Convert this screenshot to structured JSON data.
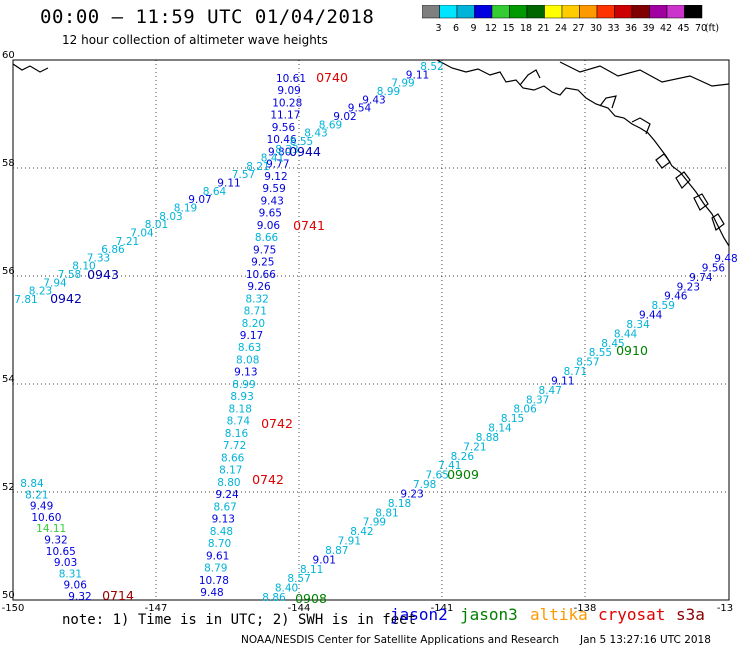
{
  "header": {
    "title": "00:00 – 11:59 UTC 01/04/2018",
    "subtitle": "12 hour collection of altimeter wave heights"
  },
  "colorbar": {
    "unit": "(ft)",
    "labels": [
      "3",
      "6",
      "9",
      "12",
      "15",
      "18",
      "21",
      "24",
      "27",
      "30",
      "33",
      "36",
      "39",
      "42",
      "45",
      "70"
    ],
    "colors": [
      "#7f7f7f",
      "#00e5ff",
      "#00b3d8",
      "#0000e0",
      "#33cc33",
      "#009900",
      "#006600",
      "#ffff00",
      "#ffcc00",
      "#ff9900",
      "#ff3300",
      "#cc0000",
      "#800000",
      "#a000a0",
      "#cc33cc",
      "#000000"
    ]
  },
  "axes": {
    "lon_labels": [
      "-150",
      "-147",
      "-144",
      "-141",
      "-138",
      "-13"
    ],
    "lat_labels": [
      "60",
      "58",
      "56",
      "54",
      "52",
      "50"
    ]
  },
  "tracks": {
    "t0740": [
      {
        "v": "10.61",
        "c": "#0000e0"
      },
      {
        "v": "9.09",
        "c": "#0000e0"
      },
      {
        "v": "10.28",
        "c": "#0000e0"
      },
      {
        "v": "11.17",
        "c": "#0000e0"
      },
      {
        "v": "9.56",
        "c": "#0000e0"
      },
      {
        "v": "10.46",
        "c": "#0000e0"
      },
      {
        "v": "9.80",
        "c": "#0000e0"
      },
      {
        "v": "9.77",
        "c": "#0000e0"
      },
      {
        "v": "9.12",
        "c": "#0000e0"
      },
      {
        "v": "9.59",
        "c": "#0000e0"
      },
      {
        "v": "9.43",
        "c": "#0000e0"
      },
      {
        "v": "9.65",
        "c": "#0000e0"
      },
      {
        "v": "9.06",
        "c": "#0000e0"
      },
      {
        "v": "8.66",
        "c": "#00b3d8"
      },
      {
        "v": "9.75",
        "c": "#0000e0"
      },
      {
        "v": "9.25",
        "c": "#0000e0"
      },
      {
        "v": "10.66",
        "c": "#0000e0"
      },
      {
        "v": "9.26",
        "c": "#0000e0"
      },
      {
        "v": "8.32",
        "c": "#00b3d8"
      },
      {
        "v": "8.71",
        "c": "#00b3d8"
      },
      {
        "v": "8.20",
        "c": "#00b3d8"
      },
      {
        "v": "9.17",
        "c": "#0000e0"
      },
      {
        "v": "8.63",
        "c": "#00b3d8"
      },
      {
        "v": "8.08",
        "c": "#00b3d8"
      },
      {
        "v": "9.13",
        "c": "#0000e0"
      },
      {
        "v": "8.99",
        "c": "#00b3d8"
      },
      {
        "v": "8.93",
        "c": "#00b3d8"
      },
      {
        "v": "8.18",
        "c": "#00b3d8"
      },
      {
        "v": "8.74",
        "c": "#00b3d8"
      },
      {
        "v": "8.16",
        "c": "#00b3d8"
      },
      {
        "v": "7.72",
        "c": "#00b3d8"
      },
      {
        "v": "8.66",
        "c": "#00b3d8"
      },
      {
        "v": "8.17",
        "c": "#00b3d8"
      },
      {
        "v": "8.80",
        "c": "#00b3d8"
      },
      {
        "v": "9.24",
        "c": "#0000e0"
      },
      {
        "v": "8.67",
        "c": "#00b3d8"
      },
      {
        "v": "9.13",
        "c": "#0000e0"
      },
      {
        "v": "8.48",
        "c": "#00b3d8"
      },
      {
        "v": "8.70",
        "c": "#00b3d8"
      },
      {
        "v": "9.61",
        "c": "#0000e0"
      },
      {
        "v": "8.79",
        "c": "#00b3d8"
      },
      {
        "v": "10.78",
        "c": "#0000e0"
      },
      {
        "v": "9.48",
        "c": "#0000e0"
      }
    ],
    "t0714": [
      {
        "v": "8.84",
        "c": "#00b3d8"
      },
      {
        "v": "8.21",
        "c": "#00b3d8"
      },
      {
        "v": "9.49",
        "c": "#0000e0"
      },
      {
        "v": "10.60",
        "c": "#0000e0"
      },
      {
        "v": "14.11",
        "c": "#33cc33"
      },
      {
        "v": "9.32",
        "c": "#0000e0"
      },
      {
        "v": "10.65",
        "c": "#0000e0"
      },
      {
        "v": "9.03",
        "c": "#0000e0"
      },
      {
        "v": "8.31",
        "c": "#00b3d8"
      },
      {
        "v": "9.06",
        "c": "#0000e0"
      },
      {
        "v": "9.32",
        "c": "#0000e0"
      }
    ],
    "t0943": [
      {
        "v": "7.81",
        "c": "#00b3d8"
      },
      {
        "v": "8.23",
        "c": "#00b3d8"
      },
      {
        "v": "7.94",
        "c": "#00b3d8"
      },
      {
        "v": "7.58",
        "c": "#00b3d8"
      },
      {
        "v": "8.10",
        "c": "#00b3d8"
      },
      {
        "v": "7.33",
        "c": "#00b3d8"
      },
      {
        "v": "6.86",
        "c": "#00b3d8"
      },
      {
        "v": "7.21",
        "c": "#00b3d8"
      },
      {
        "v": "7.04",
        "c": "#00b3d8"
      },
      {
        "v": "8.01",
        "c": "#00b3d8"
      },
      {
        "v": "8.03",
        "c": "#00b3d8"
      },
      {
        "v": "8.19",
        "c": "#00b3d8"
      },
      {
        "v": "9.07",
        "c": "#0000e0"
      },
      {
        "v": "8.64",
        "c": "#00b3d8"
      },
      {
        "v": "9.11",
        "c": "#0000e0"
      },
      {
        "v": "7.57",
        "c": "#00b3d8"
      },
      {
        "v": "8.21",
        "c": "#00b3d8"
      },
      {
        "v": "8.41",
        "c": "#00b3d8"
      },
      {
        "v": "8.33",
        "c": "#00b3d8"
      },
      {
        "v": "8.55",
        "c": "#00b3d8"
      },
      {
        "v": "8.43",
        "c": "#00b3d8"
      },
      {
        "v": "8.69",
        "c": "#00b3d8"
      },
      {
        "v": "9.02",
        "c": "#0000e0"
      },
      {
        "v": "9.54",
        "c": "#0000e0"
      },
      {
        "v": "9.43",
        "c": "#0000e0"
      },
      {
        "v": "8.99",
        "c": "#00b3d8"
      },
      {
        "v": "7.99",
        "c": "#00b3d8"
      },
      {
        "v": "9.11",
        "c": "#0000e0"
      },
      {
        "v": "8.52",
        "c": "#00b3d8"
      }
    ],
    "t0910": [
      {
        "v": "8.86",
        "c": "#00b3d8"
      },
      {
        "v": "8.40",
        "c": "#00b3d8"
      },
      {
        "v": "8.57",
        "c": "#00b3d8"
      },
      {
        "v": "8.11",
        "c": "#00b3d8"
      },
      {
        "v": "9.01",
        "c": "#0000e0"
      },
      {
        "v": "8.87",
        "c": "#00b3d8"
      },
      {
        "v": "7.91",
        "c": "#00b3d8"
      },
      {
        "v": "8.42",
        "c": "#00b3d8"
      },
      {
        "v": "7.99",
        "c": "#00b3d8"
      },
      {
        "v": "8.81",
        "c": "#00b3d8"
      },
      {
        "v": "8.18",
        "c": "#00b3d8"
      },
      {
        "v": "9.23",
        "c": "#0000e0"
      },
      {
        "v": "7.98",
        "c": "#00b3d8"
      },
      {
        "v": "7.65",
        "c": "#00b3d8"
      },
      {
        "v": "7.41",
        "c": "#00b3d8"
      },
      {
        "v": "8.26",
        "c": "#00b3d8"
      },
      {
        "v": "7.21",
        "c": "#00b3d8"
      },
      {
        "v": "8.88",
        "c": "#00b3d8"
      },
      {
        "v": "8.14",
        "c": "#00b3d8"
      },
      {
        "v": "8.15",
        "c": "#00b3d8"
      },
      {
        "v": "8.06",
        "c": "#00b3d8"
      },
      {
        "v": "8.37",
        "c": "#00b3d8"
      },
      {
        "v": "8.47",
        "c": "#00b3d8"
      },
      {
        "v": "9.11",
        "c": "#0000e0"
      },
      {
        "v": "8.71",
        "c": "#00b3d8"
      },
      {
        "v": "8.57",
        "c": "#00b3d8"
      },
      {
        "v": "8.55",
        "c": "#00b3d8"
      },
      {
        "v": "8.45",
        "c": "#00b3d8"
      },
      {
        "v": "8.44",
        "c": "#00b3d8"
      },
      {
        "v": "8.34",
        "c": "#00b3d8"
      },
      {
        "v": "9.44",
        "c": "#0000e0"
      },
      {
        "v": "8.59",
        "c": "#00b3d8"
      },
      {
        "v": "9.46",
        "c": "#0000e0"
      },
      {
        "v": "9.23",
        "c": "#0000e0"
      },
      {
        "v": "9.74",
        "c": "#0000e0"
      },
      {
        "v": "9.56",
        "c": "#0000e0"
      },
      {
        "v": "9.48",
        "c": "#0000e0"
      }
    ]
  },
  "time_labels": [
    {
      "text": "0740",
      "color": "#e00000"
    },
    {
      "text": "0944",
      "color": "#0000b0"
    },
    {
      "text": "0741",
      "color": "#e00000"
    },
    {
      "text": "0943",
      "color": "#0000b0"
    },
    {
      "text": "0942",
      "color": "#0000b0"
    },
    {
      "text": "0910",
      "color": "#008000"
    },
    {
      "text": "0742",
      "color": "#e00000"
    },
    {
      "text": "0909",
      "color": "#008000"
    },
    {
      "text": "0742",
      "color": "#e00000"
    },
    {
      "text": "0714",
      "color": "#a00000"
    },
    {
      "text": "0908",
      "color": "#008000"
    }
  ],
  "footer": {
    "note": "note: 1) Time is in UTC; 2) SWH is in feet",
    "satellites": [
      {
        "name": "jason2",
        "color": "#0000e0"
      },
      {
        "name": "jason3",
        "color": "#008000"
      },
      {
        "name": "altika",
        "color": "#ff9900"
      },
      {
        "name": "cryosat",
        "color": "#e00000"
      },
      {
        "name": "s3a",
        "color": "#8b0000"
      }
    ],
    "credit": "NOAA/NESDIS Center for Satellite Applications and Research",
    "timestamp": "Jan  5 13:27:16 UTC 2018"
  }
}
